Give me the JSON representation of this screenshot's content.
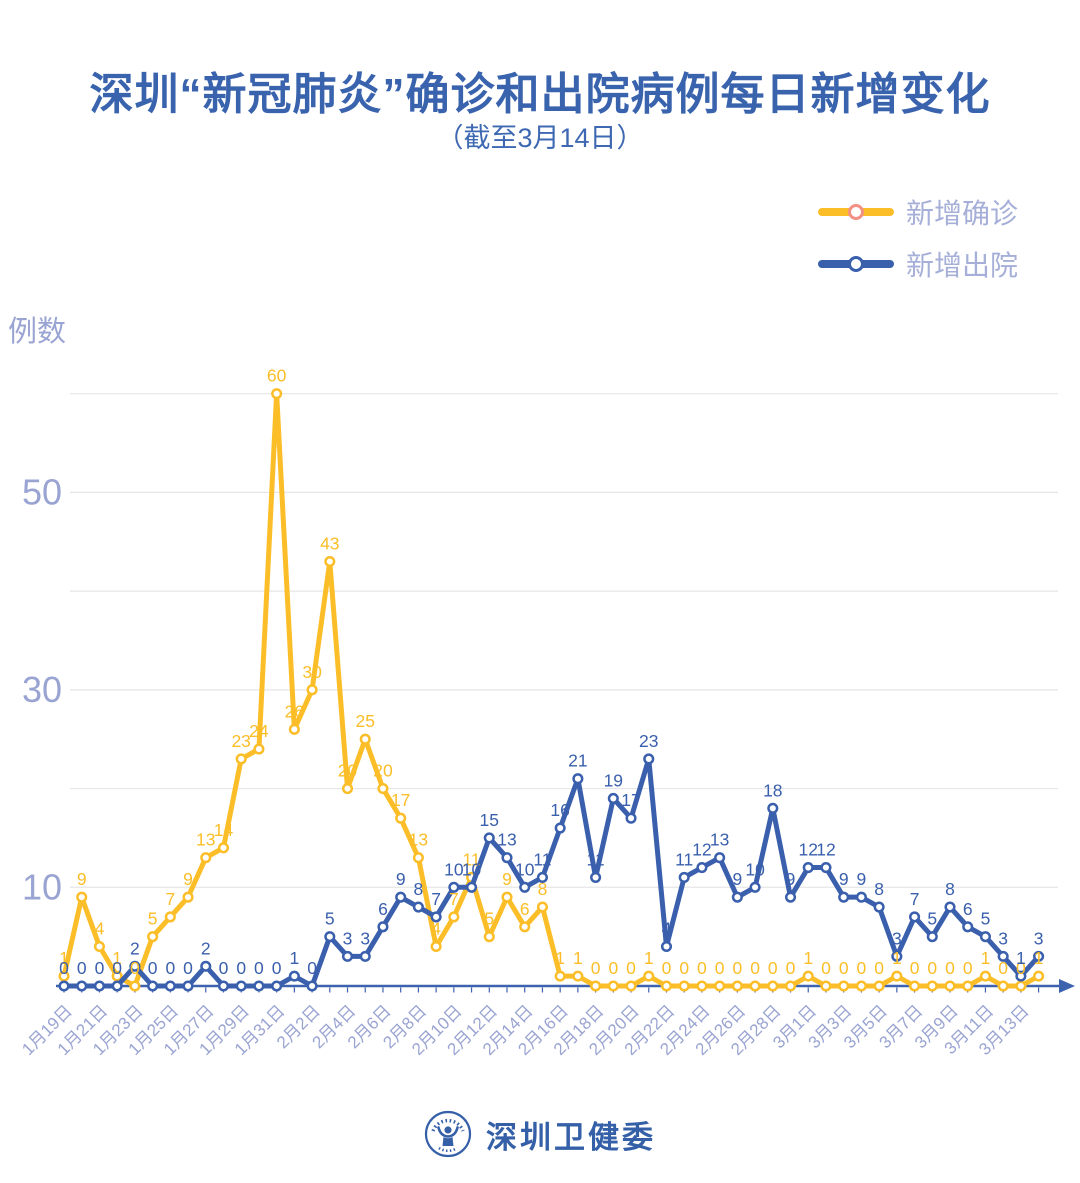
{
  "title": "深圳“新冠肺炎”确诊和出院病例每日新增变化",
  "subtitle": "（截至3月14日）",
  "y_axis_title": "例数",
  "legend": {
    "items": [
      {
        "label": "新增确诊",
        "color": "#FBBE28",
        "marker_ring": "#F29084"
      },
      {
        "label": "新增出院",
        "color": "#3A5FAC",
        "marker_ring": "#3A5FAC"
      }
    ]
  },
  "footer": {
    "brand": "深圳卫健委",
    "logo": "shenzhen-health-commission-logo"
  },
  "colors": {
    "title_blue": "#3A63AE",
    "subtitle_blue": "#3E68B2",
    "confirmed_yellow": "#FBBE28",
    "discharged_blue": "#3A5FAC",
    "axis_text": "#9AA4D2",
    "legend_text": "#A6AFD8",
    "gridline": "#E6E6E6",
    "axis_line": "#3E63AE",
    "brand_blue": "#3560A8"
  },
  "chart_data": {
    "type": "line",
    "title": "深圳“新冠肺炎”确诊和出院病例每日新增变化",
    "subtitle": "（截至3月14日）",
    "ylabel": "例数",
    "ylim": [
      0,
      60
    ],
    "gridlines": [
      10,
      20,
      30,
      40,
      50,
      60
    ],
    "y_tick_labels": [
      50,
      30,
      10
    ],
    "grid": true,
    "legend_position": "top-right",
    "point_labels": true,
    "x_tick_every": 2,
    "categories": [
      "1月19日",
      "1月20日",
      "1月21日",
      "1月22日",
      "1月23日",
      "1月24日",
      "1月25日",
      "1月26日",
      "1月27日",
      "1月28日",
      "1月29日",
      "1月30日",
      "1月31日",
      "2月1日",
      "2月2日",
      "2月3日",
      "2月4日",
      "2月5日",
      "2月6日",
      "2月7日",
      "2月8日",
      "2月9日",
      "2月10日",
      "2月11日",
      "2月12日",
      "2月13日",
      "2月14日",
      "2月15日",
      "2月16日",
      "2月17日",
      "2月18日",
      "2月19日",
      "2月20日",
      "2月21日",
      "2月22日",
      "2月23日",
      "2月24日",
      "2月25日",
      "2月26日",
      "2月27日",
      "2月28日",
      "2月29日",
      "3月1日",
      "3月2日",
      "3月3日",
      "3月4日",
      "3月5日",
      "3月6日",
      "3月7日",
      "3月8日",
      "3月9日",
      "3月10日",
      "3月11日",
      "3月12日",
      "3月13日",
      "3月14日"
    ],
    "x_tick_labels": [
      "1月19日",
      "1月21日",
      "1月23日",
      "1月25日",
      "1月27日",
      "1月29日",
      "1月31日",
      "2月2日",
      "2月4日",
      "2月6日",
      "2月8日",
      "2月10日",
      "2月12日",
      "2月14日",
      "2月16日",
      "2月18日",
      "2月20日",
      "2月22日",
      "2月24日",
      "2月26日",
      "2月28日",
      "3月1日",
      "3月3日",
      "3月5日",
      "3月7日",
      "3月9日",
      "3月11日",
      "3月13日"
    ],
    "series": [
      {
        "name": "新增确诊",
        "color": "#FBBE28",
        "values": [
          1,
          9,
          4,
          1,
          0,
          5,
          7,
          9,
          13,
          14,
          23,
          24,
          60,
          26,
          30,
          43,
          20,
          25,
          20,
          17,
          13,
          4,
          7,
          11,
          5,
          9,
          6,
          8,
          1,
          1,
          0,
          0,
          0,
          1,
          0,
          0,
          0,
          0,
          0,
          0,
          0,
          0,
          1,
          0,
          0,
          0,
          0,
          1,
          0,
          0,
          0,
          0,
          1,
          0,
          0,
          1
        ]
      },
      {
        "name": "新增出院",
        "color": "#3A5FAC",
        "values": [
          0,
          0,
          0,
          0,
          2,
          0,
          0,
          0,
          2,
          0,
          0,
          0,
          0,
          1,
          0,
          5,
          3,
          3,
          6,
          9,
          8,
          7,
          10,
          10,
          15,
          13,
          10,
          11,
          16,
          21,
          11,
          19,
          17,
          23,
          4,
          11,
          12,
          13,
          9,
          10,
          18,
          9,
          12,
          12,
          9,
          9,
          8,
          3,
          7,
          5,
          8,
          6,
          5,
          3,
          1,
          3
        ]
      }
    ]
  }
}
